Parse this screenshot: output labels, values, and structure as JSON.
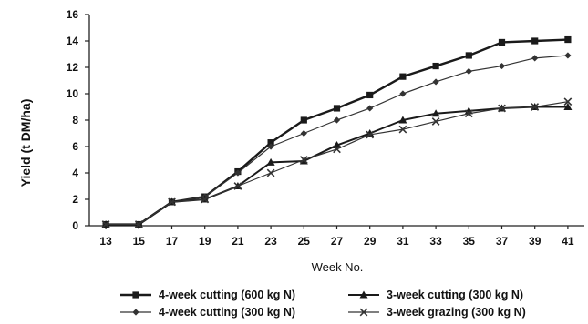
{
  "chart_data": {
    "type": "line",
    "title": "",
    "xlabel": "Week No.",
    "ylabel": "Yield (t DM/ha)",
    "x": [
      13,
      15,
      17,
      19,
      21,
      23,
      25,
      27,
      29,
      31,
      33,
      35,
      37,
      39,
      41
    ],
    "xlim": [
      12,
      42
    ],
    "ylim": [
      0,
      16
    ],
    "yticks": [
      0,
      2,
      4,
      6,
      8,
      10,
      12,
      14,
      16
    ],
    "grid": false,
    "legend_position": "bottom",
    "series": [
      {
        "name": "4-week cutting (600 kg N)",
        "marker": "square",
        "color": "#1a1a1a",
        "values": [
          0.1,
          0.1,
          1.8,
          2.2,
          4.1,
          6.3,
          8.0,
          8.9,
          9.9,
          11.3,
          12.1,
          12.9,
          13.9,
          14.0,
          14.1
        ]
      },
      {
        "name": "4-week cutting (300 kg N)",
        "marker": "diamond",
        "color": "#333333",
        "values": [
          0.1,
          0.1,
          1.8,
          2.2,
          4.0,
          6.0,
          7.0,
          8.0,
          8.9,
          10.0,
          10.9,
          11.7,
          12.1,
          12.7,
          12.9
        ]
      },
      {
        "name": "3-week cutting (300 kg N)",
        "marker": "triangle",
        "color": "#1a1a1a",
        "values": [
          0.1,
          0.1,
          1.8,
          2.0,
          3.0,
          4.8,
          4.9,
          6.1,
          7.0,
          8.0,
          8.5,
          8.7,
          8.9,
          9.0,
          9.0
        ]
      },
      {
        "name": "3-week grazing (300 kg N)",
        "marker": "cross",
        "color": "#333333",
        "values": [
          0.1,
          0.1,
          1.8,
          2.0,
          3.0,
          4.0,
          5.0,
          5.8,
          6.9,
          7.3,
          7.9,
          8.5,
          8.9,
          9.0,
          9.4
        ]
      }
    ]
  }
}
